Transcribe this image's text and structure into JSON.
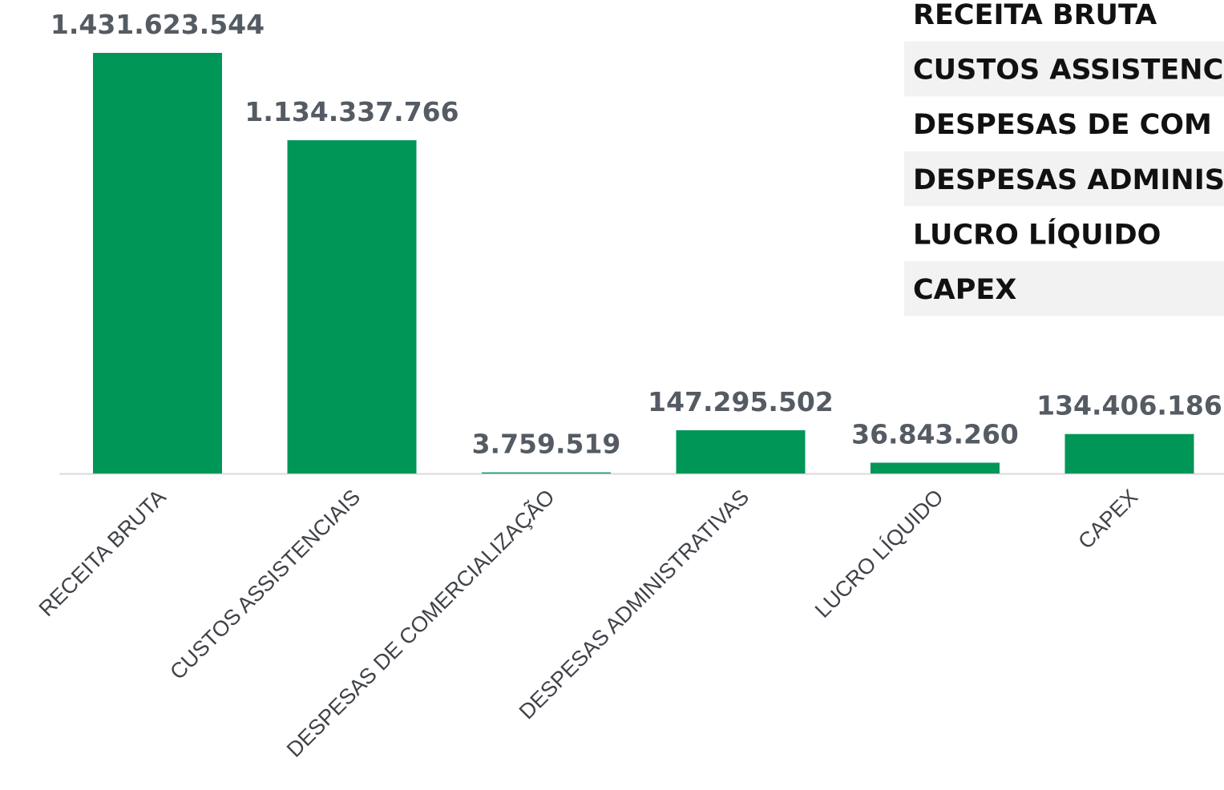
{
  "chart_data": {
    "type": "bar",
    "categories": [
      "RECEITA BRUTA",
      "CUSTOS ASSISTENCIAIS",
      "DESPESAS DE COMERCIALIZAÇÃO",
      "DESPESAS ADMINISTRATIVAS",
      "LUCRO LÍQUIDO",
      "CAPEX"
    ],
    "values": [
      1431623544,
      1134337766,
      3759519,
      147295502,
      36843260,
      134406186
    ],
    "data_labels": [
      "1.431.623.544",
      "1.134.337.766",
      "3.759.519",
      "147.295.502",
      "36.843.260",
      "134.406.186"
    ],
    "title": "",
    "xlabel": "",
    "ylabel": "",
    "ylim": [
      0,
      1431623544
    ],
    "grid": false,
    "legend": "none",
    "bar_color": "#009658",
    "axis_color": "#d9d9d9"
  },
  "side_table": {
    "rows": [
      "RECEITA BRUTA",
      "CUSTOS ASSISTENC",
      "DESPESAS DE COM",
      "DESPESAS ADMINIS",
      "LUCRO LÍQUIDO",
      "CAPEX"
    ],
    "stripe_color": "#f2f2f2"
  }
}
